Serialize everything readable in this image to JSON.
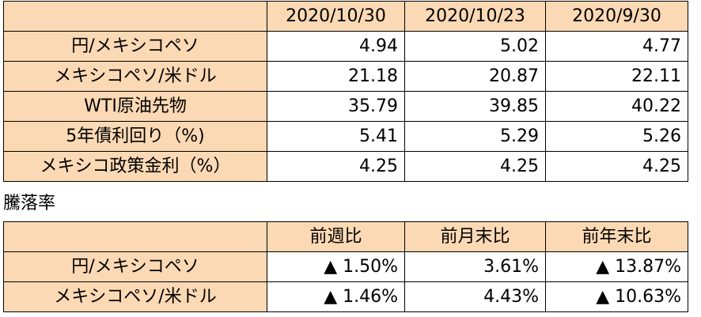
{
  "main_table": {
    "columns": [
      "2020/10/30",
      "2020/10/23",
      "2020/9/30"
    ],
    "rows": [
      {
        "label": "円/メキシコペソ",
        "values": [
          "4.94",
          "5.02",
          "4.77"
        ]
      },
      {
        "label": "メキシコペソ/米ドル",
        "values": [
          "21.18",
          "20.87",
          "22.11"
        ]
      },
      {
        "label": "WTI原油先物",
        "values": [
          "35.79",
          "39.85",
          "40.22"
        ]
      },
      {
        "label": "5年債利回り（%)",
        "values": [
          "5.41",
          "5.29",
          "5.26"
        ]
      },
      {
        "label": "メキシコ政策金利（%）",
        "values": [
          "4.25",
          "4.25",
          "4.25"
        ]
      }
    ]
  },
  "rate_caption": "騰落率",
  "rate_table": {
    "columns": [
      "前週比",
      "前月末比",
      "前年末比"
    ],
    "rows": [
      {
        "label": "円/メキシコペソ",
        "values": [
          "▲ 1.50%",
          "3.61%",
          "▲ 13.87%"
        ]
      },
      {
        "label": "メキシコペソ/米ドル",
        "values": [
          "▲ 1.46%",
          "4.43%",
          "▲ 10.63%"
        ]
      }
    ]
  },
  "colors": {
    "header_fill": "#fbd9b4",
    "grid_line": "#000000"
  }
}
